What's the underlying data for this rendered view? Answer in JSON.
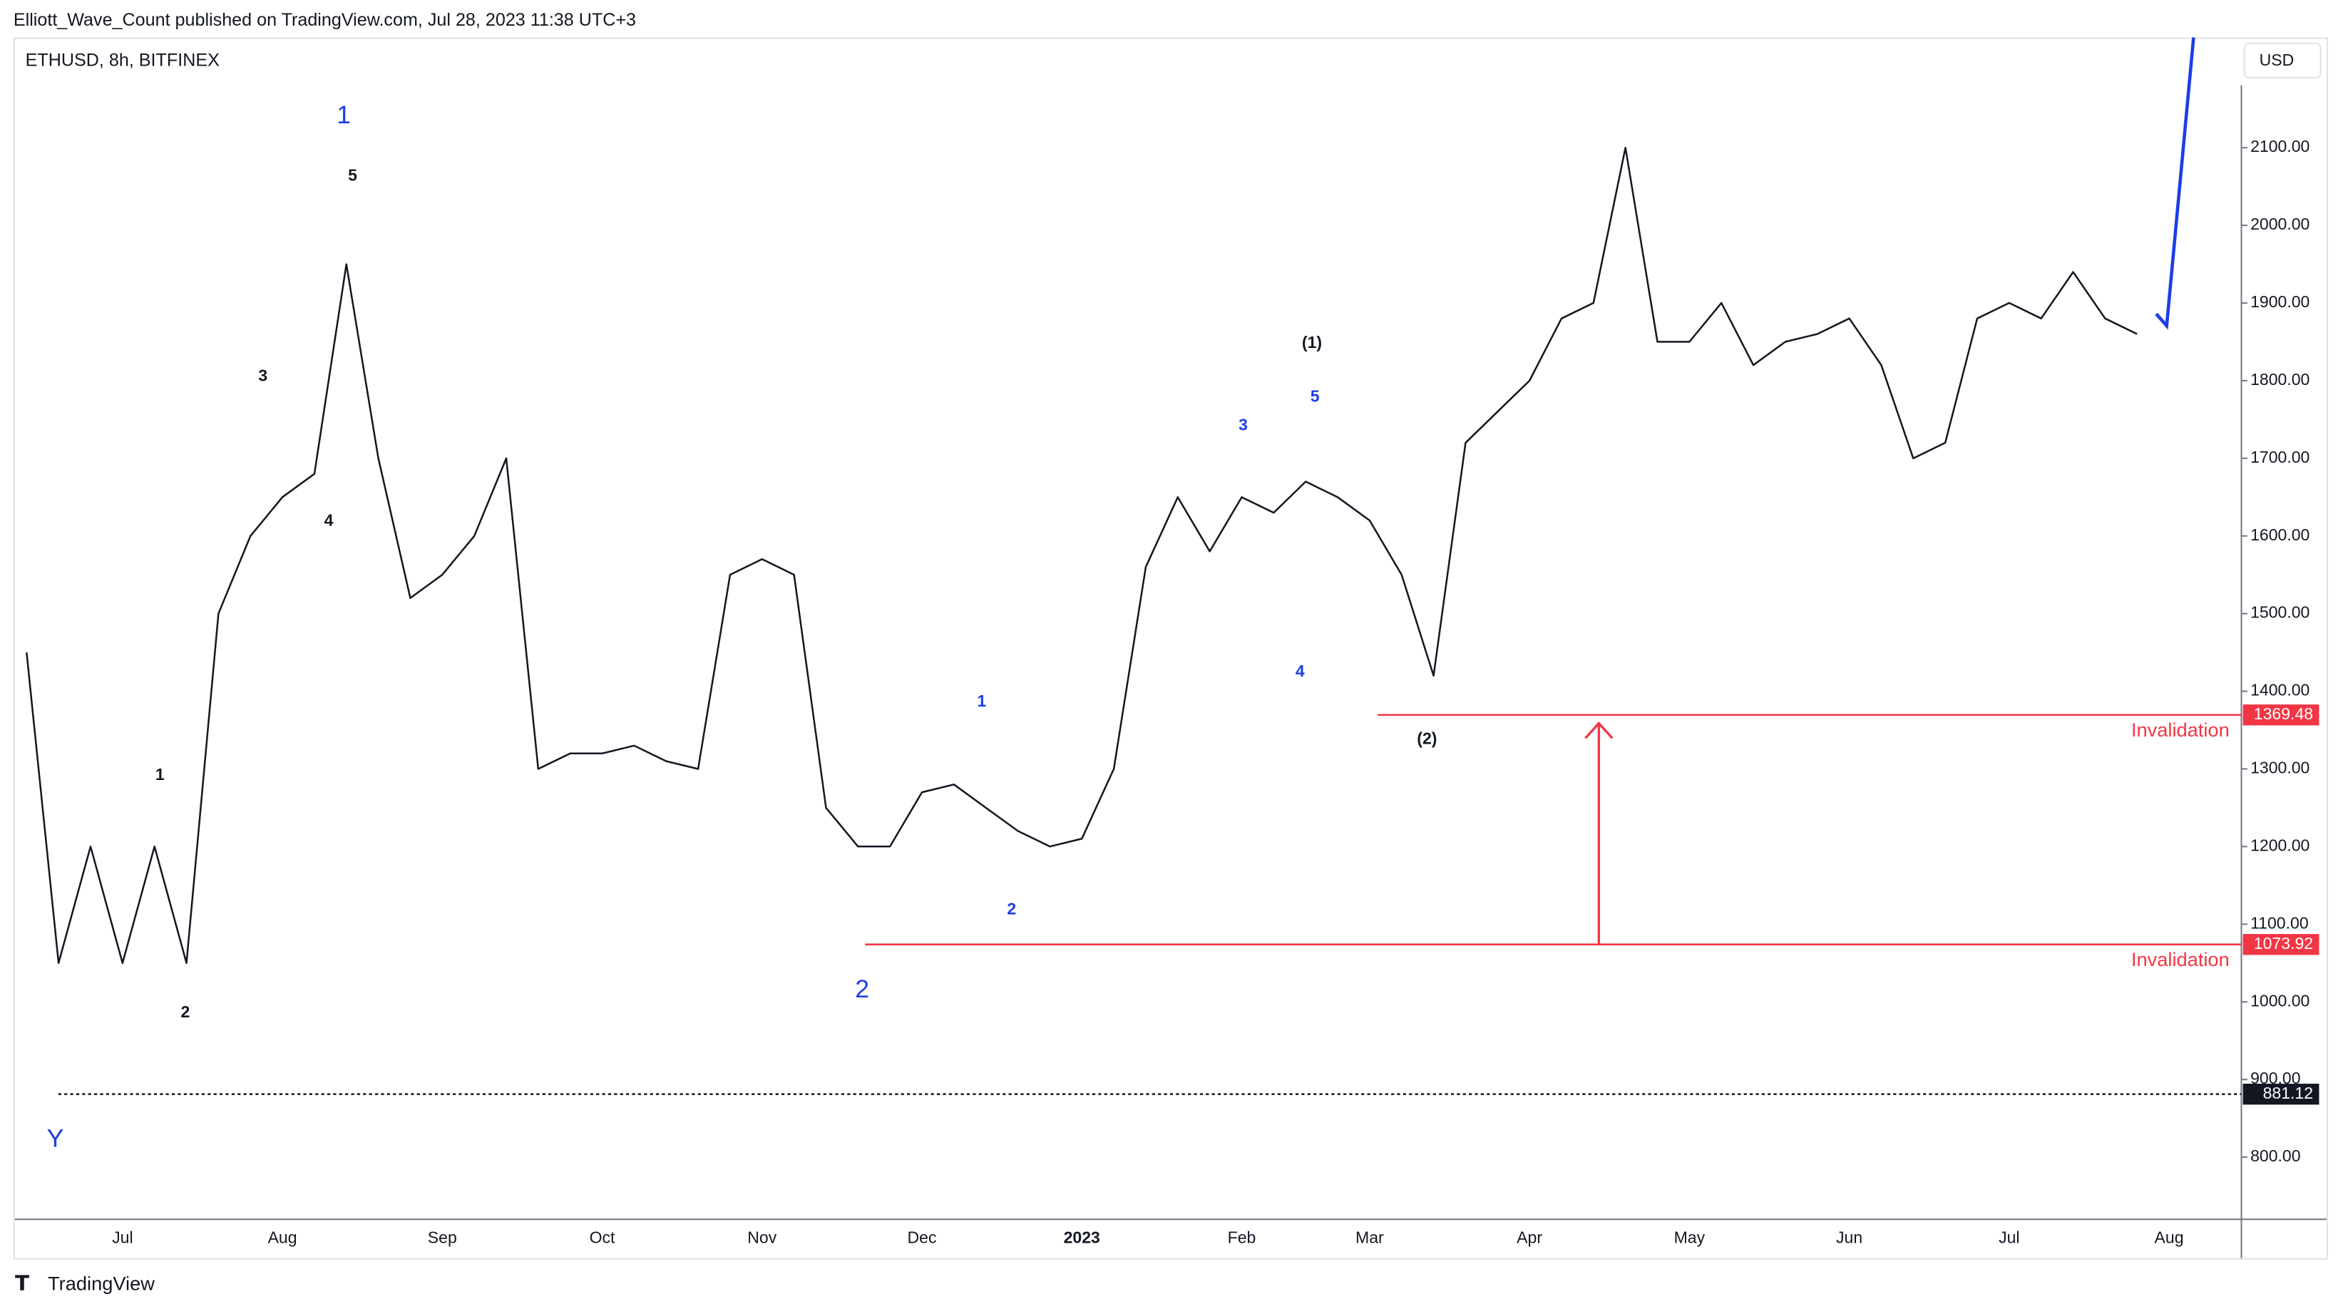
{
  "page": {
    "byline": "Elliott_Wave_Count published on TradingView.com, Jul 28, 2023 11:38 UTC+3",
    "symbol": "ETHUSD, 8h, BITFINEX",
    "currency": "USD",
    "brand": "TradingView"
  },
  "chart_data": {
    "type": "line",
    "categories": [
      null,
      null,
      null,
      "Jul",
      null,
      null,
      null,
      null,
      "Aug",
      null,
      null,
      null,
      null,
      "Sep",
      null,
      null,
      null,
      null,
      "Oct",
      null,
      null,
      null,
      null,
      "Nov",
      null,
      null,
      null,
      null,
      "Dec",
      null,
      null,
      null,
      null,
      "2023",
      null,
      null,
      null,
      null,
      "Feb",
      null,
      null,
      null,
      "Mar",
      null,
      null,
      null,
      null,
      "Apr",
      null,
      null,
      null,
      null,
      "May",
      null,
      null,
      null,
      null,
      "Jun",
      null,
      null,
      null,
      null,
      "Jul",
      null,
      null,
      null,
      null,
      "Aug"
    ],
    "series": [
      {
        "name": "ETHUSD",
        "color": "#131722",
        "values": [
          1450,
          1050,
          1200,
          1050,
          1200,
          1050,
          1500,
          1600,
          1650,
          1680,
          1950,
          1700,
          1520,
          1550,
          1600,
          1700,
          1300,
          1320,
          1320,
          1330,
          1310,
          1300,
          1550,
          1570,
          1550,
          1250,
          1200,
          1200,
          1270,
          1280,
          1250,
          1220,
          1200,
          1210,
          1300,
          1560,
          1650,
          1580,
          1650,
          1630,
          1670,
          1650,
          1620,
          1550,
          1420,
          1720,
          1760,
          1800,
          1880,
          1900,
          2100,
          1850,
          1850,
          1900,
          1820,
          1850,
          1860,
          1880,
          1820,
          1700,
          1720,
          1880,
          1900,
          1880,
          1940,
          1880,
          1860,
          null
        ]
      }
    ],
    "ylim": [
      720,
      2242
    ],
    "yticks": [
      {
        "value": 800,
        "label": "800.00"
      },
      {
        "value": 900,
        "label": "900.00"
      },
      {
        "value": 1000,
        "label": "1000.00"
      },
      {
        "value": 1100,
        "label": "1100.00"
      },
      {
        "value": 1200,
        "label": "1200.00"
      },
      {
        "value": 1300,
        "label": "1300.00"
      },
      {
        "value": 1400,
        "label": "1400.00"
      },
      {
        "value": 1500,
        "label": "1500.00"
      },
      {
        "value": 1600,
        "label": "1600.00"
      },
      {
        "value": 1700,
        "label": "1700.00"
      },
      {
        "value": 1800,
        "label": "1800.00"
      },
      {
        "value": 1900,
        "label": "1900.00"
      },
      {
        "value": 2000,
        "label": "2000.00"
      },
      {
        "value": 2100,
        "label": "2100.00"
      }
    ],
    "levels": [
      {
        "value": 1369.48,
        "text": "Invalidation",
        "color": "#f23645"
      },
      {
        "value": 1073.92,
        "text": "Invalidation",
        "color": "#f23645"
      },
      {
        "value": 881.12,
        "color": "#131722"
      }
    ],
    "annotations": [
      {
        "text": "1",
        "color": "#1e3ee6"
      },
      {
        "text": "5",
        "color": "#131722"
      },
      {
        "text": "3",
        "color": "#131722"
      },
      {
        "text": "4",
        "color": "#131722"
      },
      {
        "text": "1",
        "color": "#131722"
      },
      {
        "text": "2",
        "color": "#131722"
      },
      {
        "text": "Y",
        "color": "#1e3ee6"
      },
      {
        "text": "2",
        "color": "#1e3ee6"
      },
      {
        "text": "1",
        "color": "#1e3ee6"
      },
      {
        "text": "2",
        "color": "#1e3ee6"
      },
      {
        "text": "3",
        "color": "#1e3ee6"
      },
      {
        "text": "4",
        "color": "#1e3ee6"
      },
      {
        "text": "5",
        "color": "#1e3ee6"
      },
      {
        "text": "(1)",
        "color": "#131722"
      },
      {
        "text": "(2)",
        "color": "#131722"
      }
    ]
  }
}
